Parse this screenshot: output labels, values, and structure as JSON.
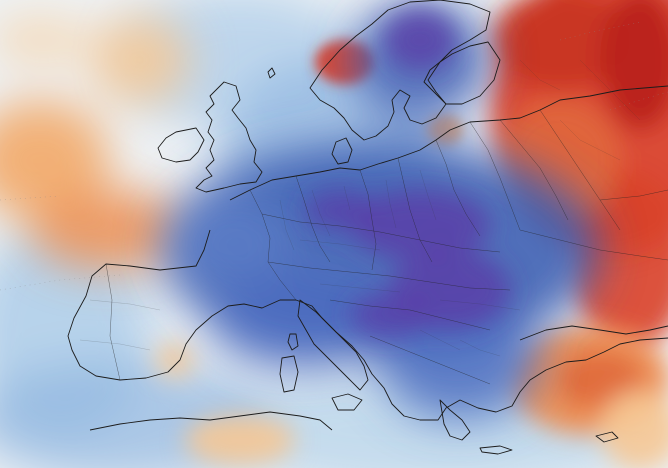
{
  "map": {
    "type": "temperature-anomaly",
    "region": "Europe",
    "palette": {
      "deep_cold": "#5a3fa8",
      "cold": "#3f5fb4",
      "cool": "#6f9ad4",
      "cold_light": "#a9cbe8",
      "neutral": "#eef1f3",
      "warm_light": "#f6c895",
      "warm": "#ee8f52",
      "hot": "#d9412a",
      "very_hot": "#b8201a"
    },
    "land_border_color": "#1c1c1c",
    "ocean_base_color": "#eef3f7",
    "labels": []
  }
}
